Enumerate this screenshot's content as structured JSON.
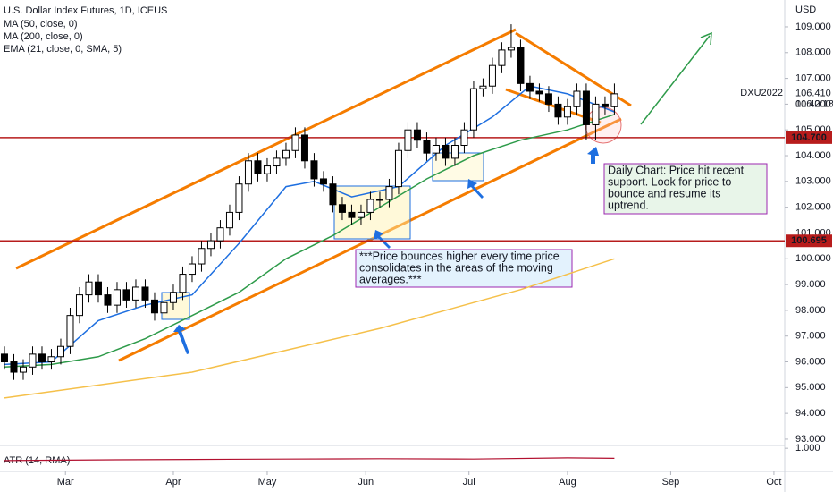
{
  "chart_data": {
    "type": "candlestick",
    "title": "U.S. Dollar Index Futures, 1D, ICEUS",
    "currency": "USD",
    "symbol": "DXU2022",
    "countdown": "01:42:18",
    "last_price": {
      "value": 106.41,
      "label": "106.410"
    },
    "xlim": [
      -0.95,
      166.3
    ],
    "xticks": [
      {
        "value": 13,
        "label": "Mar"
      },
      {
        "value": 36,
        "label": "Apr"
      },
      {
        "value": 56,
        "label": "May"
      },
      {
        "value": 77,
        "label": "Jun"
      },
      {
        "value": 99,
        "label": "Jul"
      },
      {
        "value": 120,
        "label": "Aug"
      },
      {
        "value": 142,
        "label": "Sep"
      },
      {
        "value": 164,
        "label": "Oct"
      }
    ],
    "ylim": [
      92.79,
      110.04
    ],
    "yticks": [
      {
        "value": 93,
        "label": "93.000"
      },
      {
        "value": 94,
        "label": "94.000"
      },
      {
        "value": 95,
        "label": "95.000"
      },
      {
        "value": 96,
        "label": "96.000"
      },
      {
        "value": 97,
        "label": "97.000"
      },
      {
        "value": 98,
        "label": "98.000"
      },
      {
        "value": 99,
        "label": "99.000"
      },
      {
        "value": 100,
        "label": "100.000"
      },
      {
        "value": 101,
        "label": "101.000"
      },
      {
        "value": 102,
        "label": "102.000"
      },
      {
        "value": 103,
        "label": "103.000"
      },
      {
        "value": 104,
        "label": "104.000"
      },
      {
        "value": 105,
        "label": "105.000"
      },
      {
        "value": 106,
        "label": "106.000"
      },
      {
        "value": 107,
        "label": "107.000"
      },
      {
        "value": 108,
        "label": "108.000"
      },
      {
        "value": 109,
        "label": "109.000"
      }
    ],
    "grid": false,
    "up_color": "#ffffff",
    "down_color": "#000000",
    "x": [
      0,
      2,
      4,
      6,
      8,
      10,
      12,
      14,
      16,
      18,
      20,
      22,
      24,
      26,
      28,
      30,
      32,
      34,
      36,
      38,
      40,
      42,
      44,
      46,
      48,
      50,
      52,
      54,
      56,
      58,
      60,
      62,
      64,
      66,
      68,
      70,
      72,
      74,
      76,
      78,
      80,
      82,
      84,
      86,
      88,
      90,
      92,
      94,
      96,
      98,
      100,
      102,
      104,
      106,
      108,
      110,
      112,
      114,
      116,
      118,
      120,
      122,
      124,
      126,
      128,
      130
    ],
    "open": [
      96.3,
      96.0,
      95.6,
      95.8,
      96.3,
      96.0,
      96.2,
      96.6,
      97.8,
      98.6,
      99.1,
      98.6,
      98.2,
      98.8,
      98.4,
      98.9,
      98.4,
      97.9,
      98.3,
      98.7,
      99.4,
      99.8,
      100.4,
      100.7,
      101.2,
      101.8,
      102.9,
      103.8,
      103.3,
      103.6,
      103.9,
      104.2,
      104.8,
      103.8,
      103.1,
      102.9,
      102.1,
      101.8,
      101.6,
      101.8,
      102.3,
      102.3,
      102.8,
      104.2,
      105.0,
      104.6,
      104.1,
      104.4,
      103.9,
      104.4,
      105.0,
      106.6,
      106.7,
      107.5,
      108.1,
      108.2,
      106.8,
      106.5,
      106.4,
      106.0,
      105.5,
      105.9,
      106.5,
      105.2,
      106.0,
      105.9
    ],
    "high": [
      96.6,
      96.3,
      96.1,
      96.6,
      96.6,
      96.5,
      96.9,
      98.1,
      98.9,
      99.4,
      99.4,
      98.9,
      99.1,
      99.1,
      99.2,
      99.2,
      98.7,
      98.6,
      99.0,
      99.7,
      100.1,
      100.7,
      101.0,
      101.5,
      102.1,
      103.2,
      104.1,
      104.1,
      103.9,
      104.2,
      104.5,
      105.1,
      105.1,
      104.1,
      103.4,
      103.2,
      102.4,
      102.1,
      102.1,
      102.6,
      102.6,
      103.1,
      104.5,
      105.3,
      105.3,
      104.9,
      104.7,
      104.7,
      104.7,
      105.3,
      106.9,
      107.0,
      107.8,
      108.4,
      109.1,
      108.5,
      107.1,
      106.8,
      106.7,
      106.3,
      106.2,
      106.8,
      106.8,
      106.3,
      106.3,
      106.8
    ],
    "low": [
      95.7,
      95.3,
      95.3,
      95.5,
      95.7,
      95.7,
      95.9,
      96.3,
      97.5,
      98.3,
      98.3,
      97.9,
      97.9,
      98.1,
      98.1,
      98.1,
      97.6,
      97.6,
      98.0,
      98.4,
      99.1,
      99.5,
      100.1,
      100.4,
      100.9,
      101.5,
      102.6,
      103.0,
      103.0,
      103.3,
      103.6,
      103.9,
      103.5,
      102.8,
      102.6,
      101.8,
      101.5,
      101.3,
      101.3,
      101.5,
      102.0,
      102.0,
      102.5,
      103.9,
      104.3,
      103.8,
      103.8,
      103.6,
      103.6,
      104.1,
      104.7,
      106.3,
      106.4,
      107.2,
      107.8,
      106.5,
      106.2,
      106.1,
      105.7,
      105.2,
      105.2,
      105.6,
      104.6,
      104.6,
      105.6,
      105.6
    ],
    "close": [
      96.0,
      95.6,
      95.8,
      96.3,
      96.0,
      96.2,
      96.6,
      97.8,
      98.6,
      99.1,
      98.6,
      98.2,
      98.8,
      98.4,
      98.9,
      98.4,
      97.9,
      98.3,
      98.7,
      99.4,
      99.8,
      100.4,
      100.7,
      101.2,
      101.8,
      102.9,
      103.8,
      103.3,
      103.6,
      103.9,
      104.2,
      104.8,
      103.8,
      103.1,
      102.9,
      102.1,
      101.8,
      101.6,
      101.8,
      102.3,
      102.3,
      102.8,
      104.2,
      105.0,
      104.6,
      104.1,
      104.4,
      103.9,
      104.4,
      105.0,
      106.6,
      106.7,
      107.5,
      108.1,
      108.2,
      106.8,
      106.5,
      106.4,
      106.0,
      105.5,
      105.9,
      106.5,
      105.2,
      106.0,
      105.9,
      106.4
    ],
    "series": [
      {
        "name": "MA (50, close, 0)",
        "color": "#2e9b4a",
        "x": [
          0,
          10,
          20,
          30,
          40,
          50,
          60,
          70,
          80,
          90,
          100,
          110,
          120,
          130
        ],
        "values": [
          95.8,
          95.9,
          96.2,
          96.9,
          97.8,
          98.7,
          100.0,
          100.9,
          102.0,
          103.1,
          104.0,
          104.6,
          105.0,
          105.6
        ]
      },
      {
        "name": "MA (200, close, 0)",
        "color": "#f5c04a",
        "x": [
          0,
          40,
          80,
          110,
          130
        ],
        "values": [
          94.6,
          95.6,
          97.3,
          98.8,
          100.0
        ]
      },
      {
        "name": "EMA (21, close, 0, SMA, 5)",
        "color": "#1e6fe0",
        "x": [
          0,
          10,
          20,
          30,
          40,
          50,
          60,
          66,
          74,
          84,
          94,
          104,
          112,
          120,
          130
        ],
        "values": [
          95.9,
          96.0,
          97.6,
          98.2,
          98.6,
          100.6,
          102.8,
          103.0,
          102.4,
          102.8,
          104.4,
          105.5,
          106.7,
          106.4,
          105.7
        ]
      }
    ],
    "levels": [
      {
        "value": 104.7,
        "label": "104.700"
      },
      {
        "value": 100.695,
        "label": "100.695"
      }
    ],
    "atr": {
      "name": "ATR (14, RMA)",
      "color": "#b2102f",
      "ylim": [
        0.4,
        1.05
      ],
      "yticks": [
        {
          "value": 1,
          "label": "1.000"
        }
      ],
      "x": [
        0,
        20,
        40,
        60,
        80,
        100,
        120,
        130
      ],
      "values": [
        0.68,
        0.7,
        0.71,
        0.72,
        0.73,
        0.72,
        0.75,
        0.74
      ]
    },
    "annotations": [
      {
        "lines": [
          "Daily Chart: Price hit recent",
          "support. Look for price to",
          "bounce and resume its",
          "uptrend."
        ]
      },
      {
        "lines": [
          "***Price bounces higher every time price",
          "consolidates in the areas of the moving",
          "averages.***"
        ]
      }
    ]
  }
}
